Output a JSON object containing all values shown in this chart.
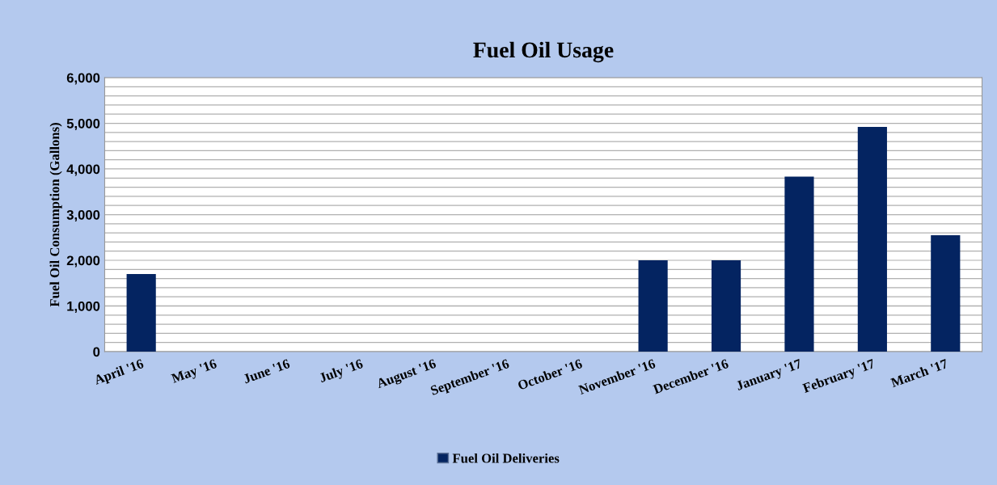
{
  "chart_data": {
    "type": "bar",
    "title": "Fuel Oil Usage",
    "ylabel": "Fuel Oil Consumption (Gallons)",
    "categories": [
      "April '16",
      "May '16",
      "June '16",
      "July '16",
      "August '16",
      "September '16",
      "October '16",
      "November '16",
      "December '16",
      "January '17",
      "February '17",
      "March '17"
    ],
    "series": [
      {
        "name": "Fuel Oil Deliveries",
        "color": "#042461",
        "values": [
          1700,
          0,
          0,
          0,
          0,
          0,
          0,
          2000,
          2000,
          3830,
          4920,
          2550
        ]
      }
    ],
    "ylim": [
      0,
      6000
    ],
    "yticks": [
      {
        "value": 0,
        "label": "0"
      },
      {
        "value": 200,
        "label": null
      },
      {
        "value": 400,
        "label": null
      },
      {
        "value": 600,
        "label": null
      },
      {
        "value": 800,
        "label": null
      },
      {
        "value": 1000,
        "label": "1,000"
      },
      {
        "value": 1200,
        "label": null
      },
      {
        "value": 1400,
        "label": null
      },
      {
        "value": 1600,
        "label": null
      },
      {
        "value": 1800,
        "label": null
      },
      {
        "value": 2000,
        "label": "2,000"
      },
      {
        "value": 2200,
        "label": null
      },
      {
        "value": 2400,
        "label": null
      },
      {
        "value": 2600,
        "label": null
      },
      {
        "value": 2800,
        "label": null
      },
      {
        "value": 3000,
        "label": "3,000"
      },
      {
        "value": 3200,
        "label": null
      },
      {
        "value": 3400,
        "label": null
      },
      {
        "value": 3600,
        "label": null
      },
      {
        "value": 3800,
        "label": null
      },
      {
        "value": 4000,
        "label": "4,000"
      },
      {
        "value": 4200,
        "label": null
      },
      {
        "value": 4400,
        "label": null
      },
      {
        "value": 4600,
        "label": null
      },
      {
        "value": 4800,
        "label": null
      },
      {
        "value": 5000,
        "label": "5,000"
      },
      {
        "value": 5200,
        "label": null
      },
      {
        "value": 5400,
        "label": null
      },
      {
        "value": 5600,
        "label": null
      },
      {
        "value": 5800,
        "label": null
      },
      {
        "value": 6000,
        "label": "6,000"
      }
    ],
    "grid": "y",
    "legend": "bottom"
  }
}
